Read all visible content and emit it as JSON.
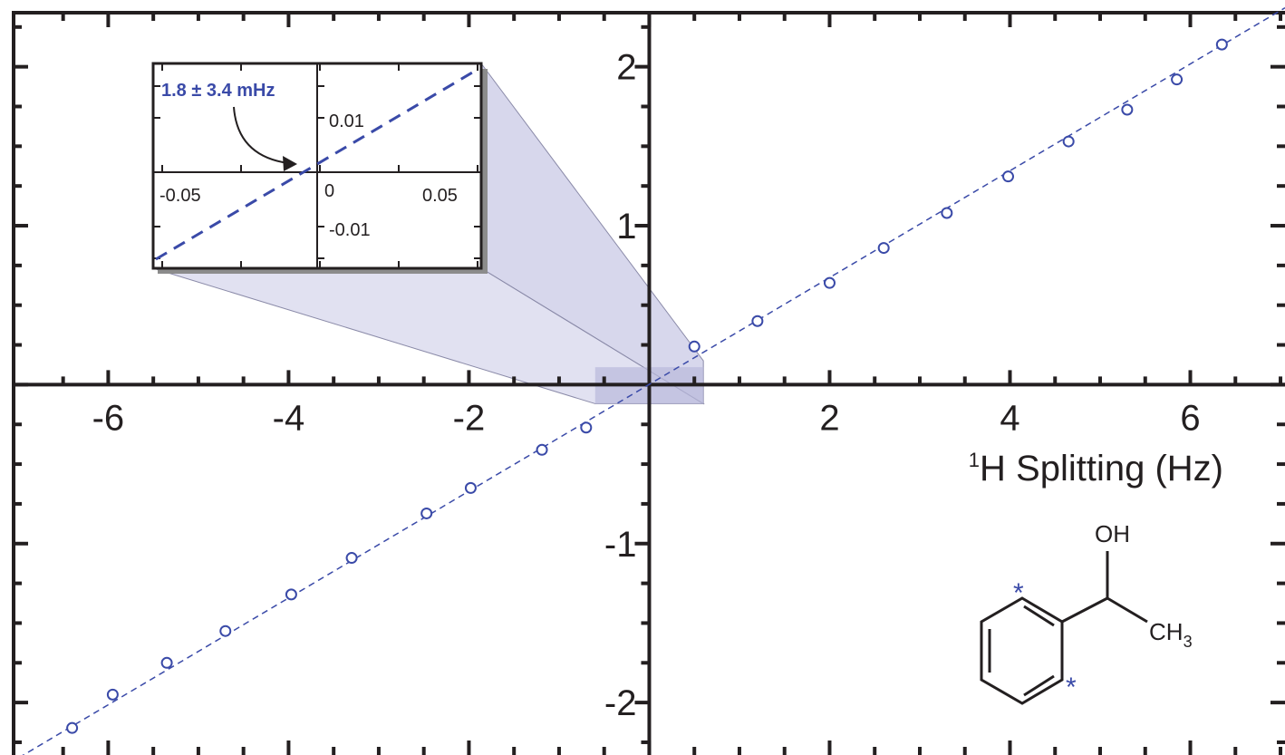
{
  "chart_data": {
    "type": "scatter",
    "title": "",
    "xlabel_sup": "1",
    "xlabel": "H Splitting (Hz)",
    "ylabel": "",
    "xlim": [
      -7.2,
      7.05
    ],
    "ylim": [
      -2.33,
      2.42
    ],
    "xticks": [
      -6,
      -4,
      -2,
      2,
      4,
      6
    ],
    "yticks": [
      -2,
      -1,
      1,
      2
    ],
    "grid": false,
    "colors": {
      "points": "#3a4aa8",
      "fit": "#3a4aa8",
      "axes": "#231f20",
      "zoom": "#c9c9e6"
    },
    "series": [
      {
        "marker": "open-circle",
        "x": [
          -6.4,
          -5.95,
          -5.35,
          -4.7,
          -3.97,
          -3.3,
          -2.47,
          -1.98,
          -1.19,
          -0.7,
          0.5,
          1.2,
          2.0,
          2.6,
          3.3,
          3.98,
          4.65,
          5.3,
          5.85,
          6.35
        ],
        "y": [
          -2.16,
          -1.95,
          -1.75,
          -1.55,
          -1.32,
          -1.09,
          -0.81,
          -0.65,
          -0.41,
          -0.27,
          0.24,
          0.4,
          0.64,
          0.86,
          1.08,
          1.31,
          1.53,
          1.73,
          1.92,
          2.14
        ]
      }
    ],
    "fit": {
      "style": "dashed",
      "slope": 0.336,
      "intercept": 0.0018
    },
    "inset": {
      "xlim": [
        -0.1,
        0.1
      ],
      "ylim": [
        -0.02,
        0.02
      ],
      "xtick_labels": [
        "-0.05",
        "0",
        "0.05"
      ],
      "ytick_labels": [
        "0.01",
        "-0.01"
      ],
      "annotation": "1.8 ± 3.4 mHz"
    },
    "molecule": {
      "oh": "OH",
      "ch": "CH",
      "ch_sub": "3",
      "star": "*"
    }
  }
}
